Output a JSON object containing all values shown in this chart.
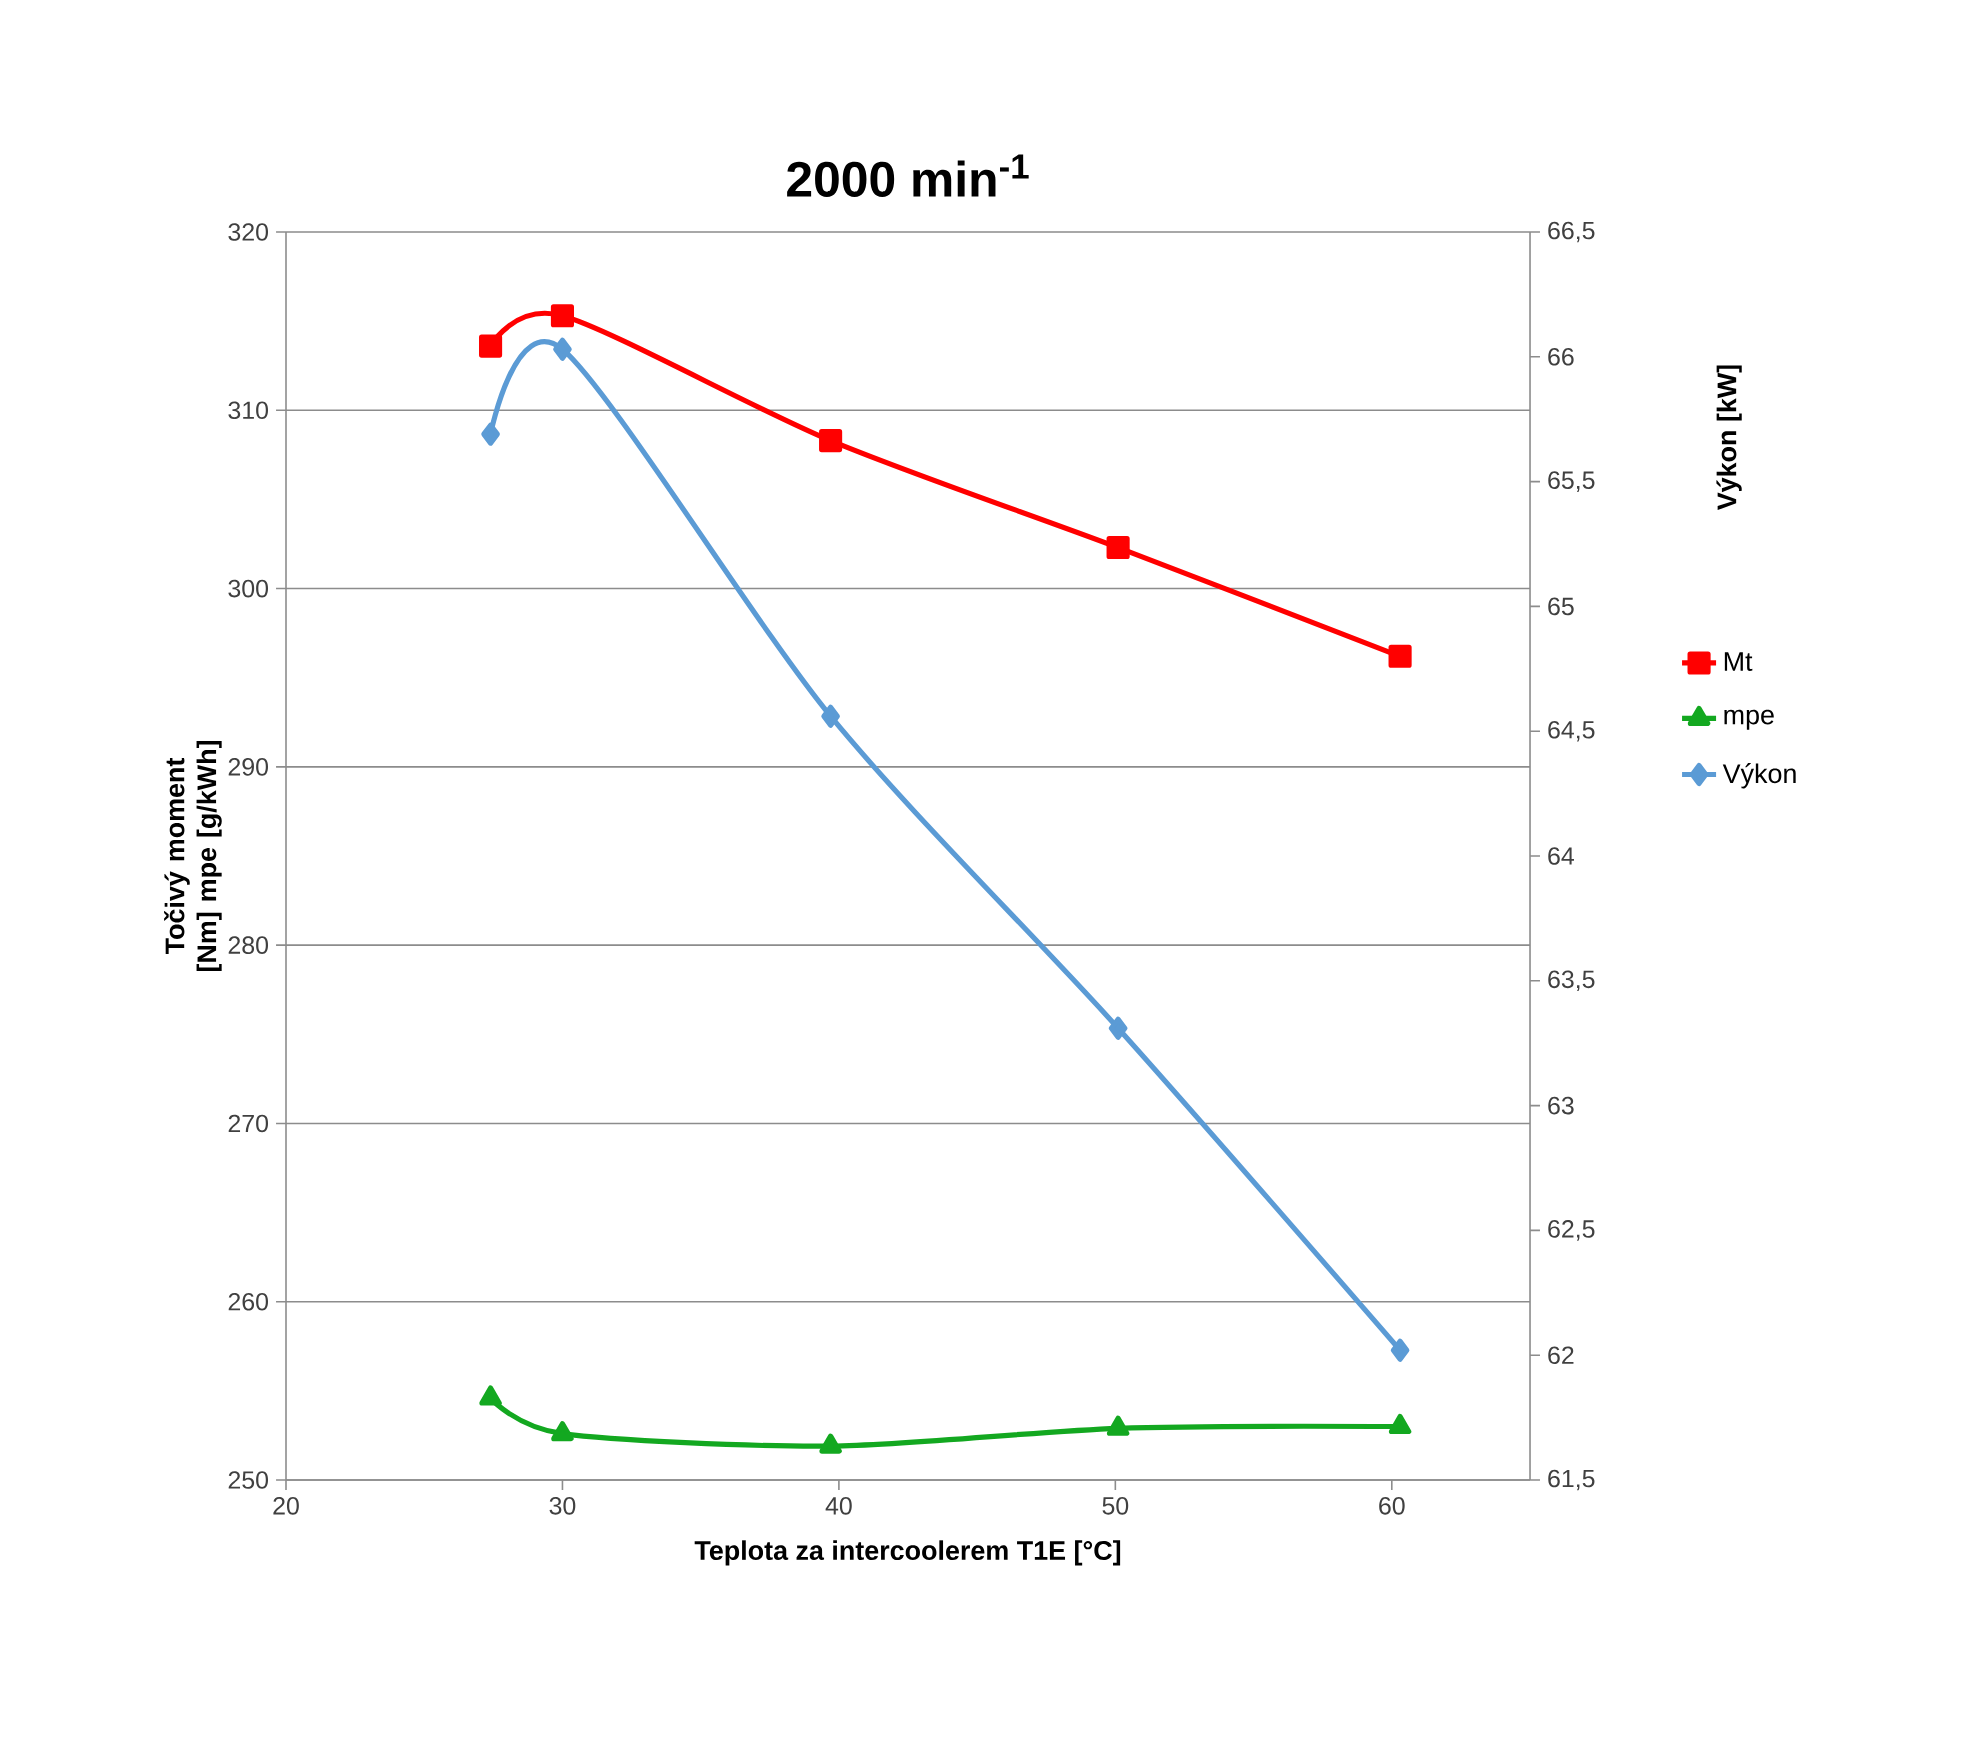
{
  "chart_data": {
    "type": "line",
    "title": "2000 min$^{-1}$",
    "xlabel": "Teplota za intercoolerem T1E [°C]",
    "ylabel": "Točivý moment [Nm] mpe [g/kWh]",
    "y2label": "Výkon [kW]",
    "xlim": [
      20,
      65
    ],
    "xticks": [
      20,
      30,
      40,
      50,
      60
    ],
    "ylim": [
      250,
      320
    ],
    "yticks": [
      250,
      260,
      270,
      280,
      290,
      300,
      310,
      320
    ],
    "y2lim": [
      61.5,
      66.5
    ],
    "y2ticks": [
      {
        "value": 61.5,
        "label": "61,5"
      },
      {
        "value": 62,
        "label": "62"
      },
      {
        "value": 62.5,
        "label": "62,5"
      },
      {
        "value": 63,
        "label": "63"
      },
      {
        "value": 63.5,
        "label": "63,5"
      },
      {
        "value": 64,
        "label": "64"
      },
      {
        "value": 64.5,
        "label": "64,5"
      },
      {
        "value": 65,
        "label": "65"
      },
      {
        "value": 65.5,
        "label": "65,5"
      },
      {
        "value": 66,
        "label": "66"
      },
      {
        "value": 66.5,
        "label": "66,5"
      }
    ],
    "grid": "y",
    "legend": "right",
    "x": [
      27.4,
      30,
      39.7,
      50.1,
      60.3
    ],
    "series": [
      {
        "name": "Mt",
        "color": "#ff0000",
        "marker": "square",
        "values": [
          313.6,
          315.3,
          308.3,
          302.3,
          296.2
        ]
      },
      {
        "name": "mpe",
        "color": "#13a820",
        "marker": "triangle",
        "values": [
          254.6,
          252.6,
          251.9,
          252.9,
          253.0
        ]
      },
      {
        "name": "Výkon",
        "color": "#5b9bd5",
        "marker": "diamond",
        "axis": "y2",
        "values": [
          65.69,
          66.03,
          64.56,
          63.31,
          62.02
        ]
      }
    ]
  }
}
